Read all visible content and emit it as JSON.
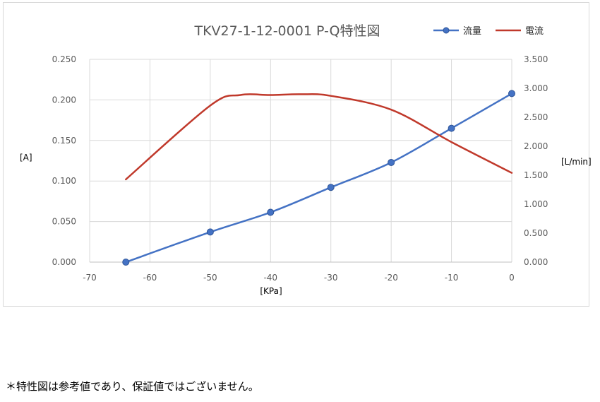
{
  "chart_data": {
    "type": "line",
    "title": "TKV27-1-12-0001 P-Q特性図",
    "xlabel": "[KPa]",
    "ylabel_left": "[A]",
    "ylabel_right": "[L/min]",
    "xlim": [
      -70,
      0
    ],
    "ylim_left": [
      0,
      0.25
    ],
    "ylim_right": [
      0,
      3.5
    ],
    "x_ticks": [
      "-70",
      "-60",
      "-50",
      "-40",
      "-30",
      "-20",
      "-10",
      "0"
    ],
    "y_left_ticks": [
      "0.000",
      "0.050",
      "0.100",
      "0.150",
      "0.200",
      "0.250"
    ],
    "y_right_ticks": [
      "0.000",
      "0.500",
      "1.000",
      "1.500",
      "2.000",
      "2.500",
      "3.000",
      "3.500"
    ],
    "grid": true,
    "legend_position": "top-right",
    "series": [
      {
        "name": "流量",
        "axis": "right",
        "color": "#4472c4",
        "markers": true,
        "x": [
          -64,
          -50,
          -40,
          -30,
          -20,
          -10,
          0
        ],
        "y": [
          0.0,
          0.52,
          0.86,
          1.29,
          1.72,
          2.31,
          2.91
        ]
      },
      {
        "name": "電流",
        "axis": "left",
        "color": "#c0392b",
        "markers": false,
        "x": [
          -64,
          -50,
          -45,
          -40,
          -35,
          -30,
          -20,
          -10,
          0
        ],
        "y": [
          0.102,
          0.193,
          0.206,
          0.206,
          0.207,
          0.205,
          0.188,
          0.148,
          0.11
        ]
      }
    ]
  },
  "footnote": "＊特性図は参考値であり、保証値ではございません。"
}
